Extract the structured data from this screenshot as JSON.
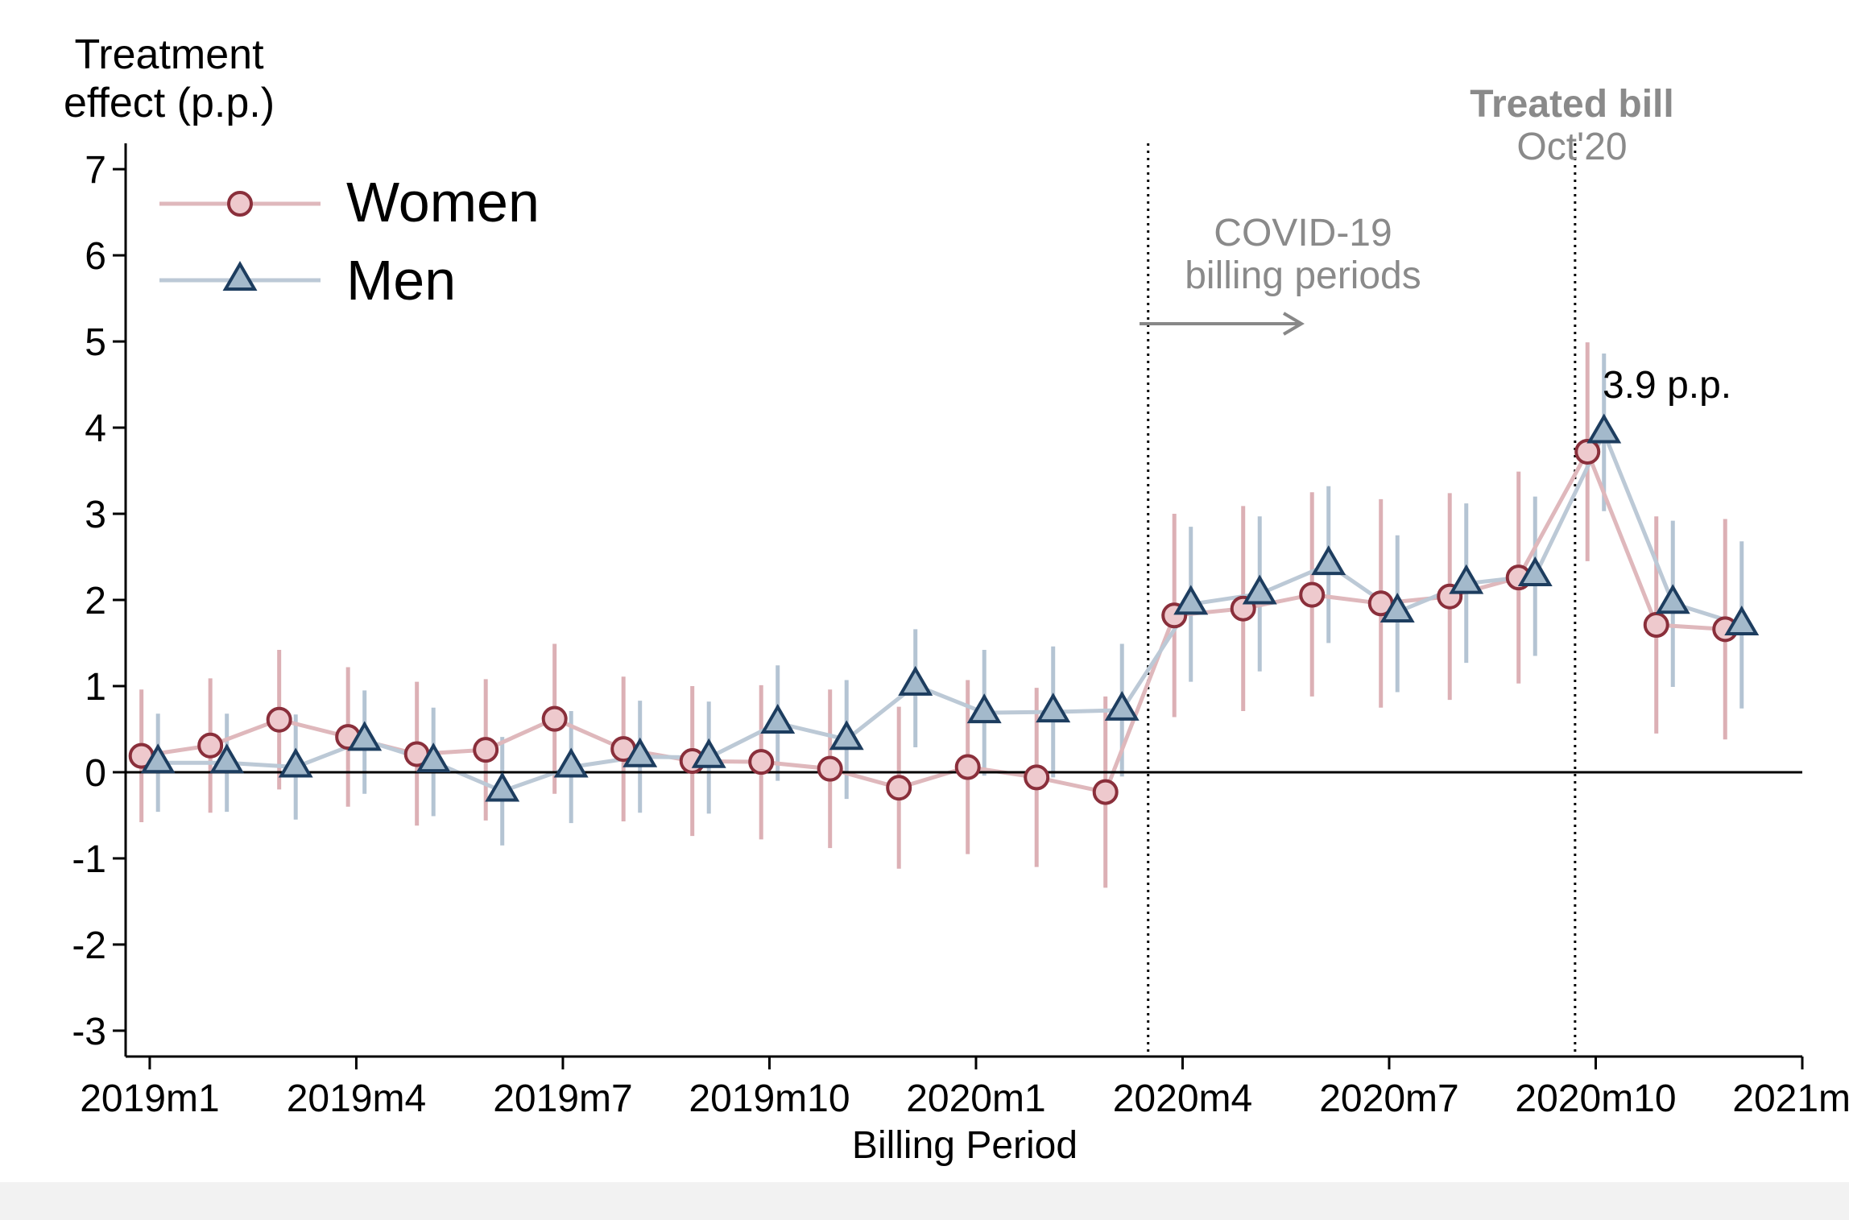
{
  "chart_data": {
    "type": "line",
    "ylabel_lines": [
      "Treatment",
      "effect (p.p.)"
    ],
    "xlabel": "Billing Period",
    "x": [
      0,
      1,
      2,
      3,
      4,
      5,
      6,
      7,
      8,
      9,
      10,
      11,
      12,
      13,
      14,
      15,
      16,
      17,
      18,
      19,
      20,
      21,
      22,
      23
    ],
    "x_tick_positions": [
      0,
      3,
      6,
      9,
      12,
      15,
      18,
      21,
      24
    ],
    "x_tick_labels": [
      "2019m1",
      "2019m4",
      "2019m7",
      "2019m10",
      "2020m1",
      "2020m4",
      "2020m7",
      "2020m10",
      "2021m1"
    ],
    "y_ticks": [
      -3,
      -2,
      -1,
      0,
      1,
      2,
      3,
      4,
      5,
      6,
      7
    ],
    "y_tick_labels": [
      "-3",
      "-2",
      "-1",
      "0",
      "1",
      "2",
      "3",
      "4",
      "5",
      "6",
      "7"
    ],
    "xlim": [
      -0.35,
      24
    ],
    "ylim": [
      -3.3,
      7.3
    ],
    "series": [
      {
        "name": "Women",
        "marker": "circle",
        "line_color": "#dfb8bc",
        "marker_fill": "#eec9cd",
        "marker_edge": "#8a2f3b",
        "ci_color": "#dcb0b5",
        "values": [
          0.19,
          0.31,
          0.61,
          0.41,
          0.21,
          0.26,
          0.62,
          0.27,
          0.13,
          0.12,
          0.04,
          -0.18,
          0.06,
          -0.06,
          -0.23,
          1.82,
          1.9,
          2.06,
          1.96,
          2.04,
          2.26,
          3.72,
          1.71,
          1.66
        ],
        "ci_low": [
          -0.58,
          -0.47,
          -0.2,
          -0.4,
          -0.62,
          -0.56,
          -0.25,
          -0.57,
          -0.74,
          -0.78,
          -0.88,
          -1.12,
          -0.95,
          -1.1,
          -1.34,
          0.64,
          0.71,
          0.88,
          0.75,
          0.84,
          1.03,
          2.45,
          0.45,
          0.38
        ],
        "ci_high": [
          0.96,
          1.09,
          1.42,
          1.22,
          1.05,
          1.08,
          1.49,
          1.11,
          1.0,
          1.01,
          0.96,
          0.76,
          1.07,
          0.98,
          0.88,
          3.0,
          3.09,
          3.25,
          3.17,
          3.24,
          3.49,
          4.99,
          2.97,
          2.94
        ]
      },
      {
        "name": "Men",
        "marker": "triangle",
        "line_color": "#bcc9d6",
        "marker_fill": "#a3b9cb",
        "marker_edge": "#1d3d5f",
        "ci_color": "#b4c4d3",
        "values": [
          0.11,
          0.11,
          0.06,
          0.37,
          0.12,
          -0.22,
          0.06,
          0.18,
          0.17,
          0.57,
          0.38,
          1.01,
          0.69,
          0.7,
          0.72,
          1.95,
          2.07,
          2.41,
          1.86,
          2.19,
          2.28,
          3.94,
          1.96,
          1.71
        ],
        "ci_low": [
          -0.46,
          -0.46,
          -0.55,
          -0.25,
          -0.51,
          -0.85,
          -0.59,
          -0.47,
          -0.48,
          -0.1,
          -0.31,
          0.29,
          -0.04,
          -0.06,
          -0.05,
          1.05,
          1.17,
          1.5,
          0.93,
          1.27,
          1.35,
          3.03,
          0.99,
          0.74
        ],
        "ci_high": [
          0.68,
          0.68,
          0.67,
          0.95,
          0.75,
          0.41,
          0.71,
          0.83,
          0.82,
          1.24,
          1.07,
          1.66,
          1.42,
          1.46,
          1.49,
          2.85,
          2.97,
          3.32,
          2.75,
          3.12,
          3.2,
          4.86,
          2.92,
          2.68
        ]
      }
    ],
    "vertical_lines": [
      14.5,
      20.7
    ],
    "annotations": {
      "covid_line1": "COVID-19",
      "covid_line2": "billing periods",
      "treated_title": "Treated bill",
      "treated_sub": "Oct'20",
      "peak_label": "3.9 p.p."
    },
    "legend": {
      "position": "top-left",
      "entries": [
        "Women",
        "Men"
      ]
    }
  }
}
